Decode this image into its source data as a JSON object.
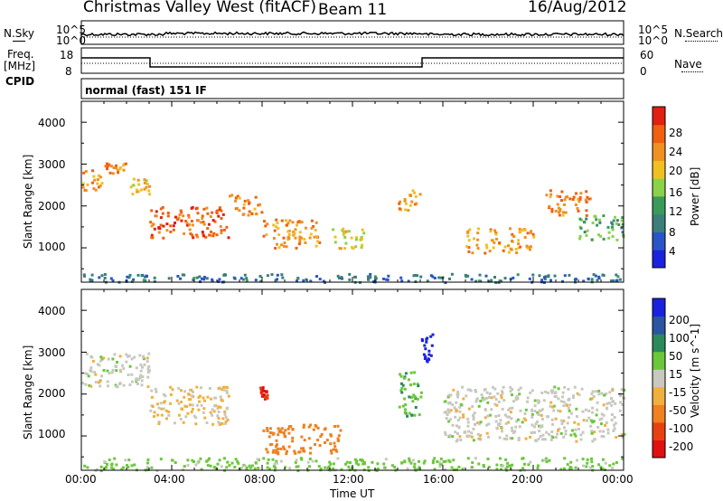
{
  "header": {
    "title": "Christmas Valley West (fitACF)",
    "beam": "Beam 11",
    "date": "16/Aug/2012"
  },
  "top_panels": {
    "nsky_label": "N.Sky",
    "nsky_ticks": [
      "10^5",
      "10^0"
    ],
    "nsearch_label": "N.Search",
    "nsearch_ticks": [
      "10^5",
      "10^0"
    ],
    "freq_label_1": "Freq.",
    "freq_label_2": "[MHz]",
    "freq_ticks": [
      "18",
      "8"
    ],
    "nave_label": "Nave",
    "nave_ticks": [
      "60",
      "0"
    ],
    "cpid_label": "CPID",
    "cpid_value": "normal (fast) 151 IF"
  },
  "x_axis": {
    "label": "Time UT",
    "ticks": [
      "00:00",
      "04:00",
      "08:00",
      "12:00",
      "16:00",
      "20:00",
      "00:00"
    ]
  },
  "colors": {
    "power_scale": [
      "#1a22e0",
      "#2a55c8",
      "#3a7f7a",
      "#3a9a5a",
      "#8bd24a",
      "#f0c020",
      "#f09020",
      "#f06010",
      "#e02010"
    ],
    "velocity_scale": [
      "#1a22e0",
      "#2a55a0",
      "#2a8a5a",
      "#6ac83a",
      "#c8c8c0",
      "#f0b040",
      "#f08020",
      "#e84010",
      "#e01010"
    ]
  },
  "chart_data": [
    {
      "type": "heatmap",
      "title": "",
      "ylabel": "Slant Range [km]",
      "xlabel": "",
      "x_range_hours": [
        0,
        24
      ],
      "ylim": [
        180,
        4500
      ],
      "yticks": [
        "1000",
        "2000",
        "3000",
        "4000"
      ],
      "colorbar": {
        "label": "Power [dB]",
        "ticks": [
          "28",
          "24",
          "20",
          "16",
          "12",
          "8",
          "4"
        ],
        "range": [
          0,
          30
        ]
      },
      "features": [
        {
          "desc_range_km": [
            2400,
            2900
          ],
          "t": [
            0.0,
            1.0
          ],
          "power_db": 22
        },
        {
          "desc_range_km": [
            2800,
            3050
          ],
          "t": [
            1.0,
            2.0
          ],
          "power_db": 24
        },
        {
          "desc_range_km": [
            2300,
            2700
          ],
          "t": [
            2.0,
            3.0
          ],
          "power_db": 20
        },
        {
          "desc_range_km": [
            1250,
            2000
          ],
          "t": [
            3.0,
            6.5
          ],
          "power_db": 26
        },
        {
          "desc_range_km": [
            1800,
            2300
          ],
          "t": [
            6.5,
            8.0
          ],
          "power_db": 24
        },
        {
          "desc_range_km": [
            1000,
            1700
          ],
          "t": [
            8.0,
            10.5
          ],
          "power_db": 22
        },
        {
          "desc_range_km": [
            1000,
            1500
          ],
          "t": [
            11.0,
            12.5
          ],
          "power_db": 18
        },
        {
          "desc_range_km": [
            1900,
            2400
          ],
          "t": [
            14.0,
            15.0
          ],
          "power_db": 22
        },
        {
          "desc_range_km": [
            900,
            1500
          ],
          "t": [
            17.0,
            20.0
          ],
          "power_db": 22
        },
        {
          "desc_range_km": [
            1800,
            2400
          ],
          "t": [
            20.5,
            22.5
          ],
          "power_db": 24
        },
        {
          "desc_range_km": [
            1200,
            1800
          ],
          "t": [
            22.0,
            24.0
          ],
          "power_db": 12
        },
        {
          "desc_range_km": [
            200,
            400
          ],
          "t": [
            0.0,
            24.0
          ],
          "power_db": 6
        }
      ]
    },
    {
      "type": "heatmap",
      "title": "",
      "ylabel": "Slant Range [km]",
      "xlabel": "Time UT",
      "x_range_hours": [
        0,
        24
      ],
      "ylim": [
        180,
        4500
      ],
      "yticks": [
        "1000",
        "2000",
        "3000",
        "4000"
      ],
      "colorbar": {
        "label": "Velocity [m s^-1]",
        "ticks": [
          "200",
          "100",
          "50",
          "15",
          "-15",
          "-50",
          "-100",
          "-200"
        ],
        "range": [
          -250,
          250
        ]
      },
      "features": [
        {
          "desc_range_km": [
            2200,
            3000
          ],
          "t": [
            0.0,
            3.0
          ],
          "velocity": 0
        },
        {
          "desc_range_km": [
            1300,
            2200
          ],
          "t": [
            3.0,
            6.5
          ],
          "velocity": -20
        },
        {
          "desc_range_km": [
            600,
            1300
          ],
          "t": [
            8.0,
            11.5
          ],
          "velocity": -70
        },
        {
          "desc_range_km": [
            1900,
            2200
          ],
          "t": [
            7.8,
            8.2
          ],
          "velocity": -200
        },
        {
          "desc_range_km": [
            2800,
            3600
          ],
          "t": [
            15.0,
            15.5
          ],
          "velocity": 220
        },
        {
          "desc_range_km": [
            1500,
            2600
          ],
          "t": [
            14.0,
            15.0
          ],
          "velocity": 40
        },
        {
          "desc_range_km": [
            900,
            2200
          ],
          "t": [
            16.0,
            24.0
          ],
          "velocity": 0
        },
        {
          "desc_range_km": [
            200,
            500
          ],
          "t": [
            0.0,
            24.0
          ],
          "velocity": 30
        }
      ]
    }
  ]
}
